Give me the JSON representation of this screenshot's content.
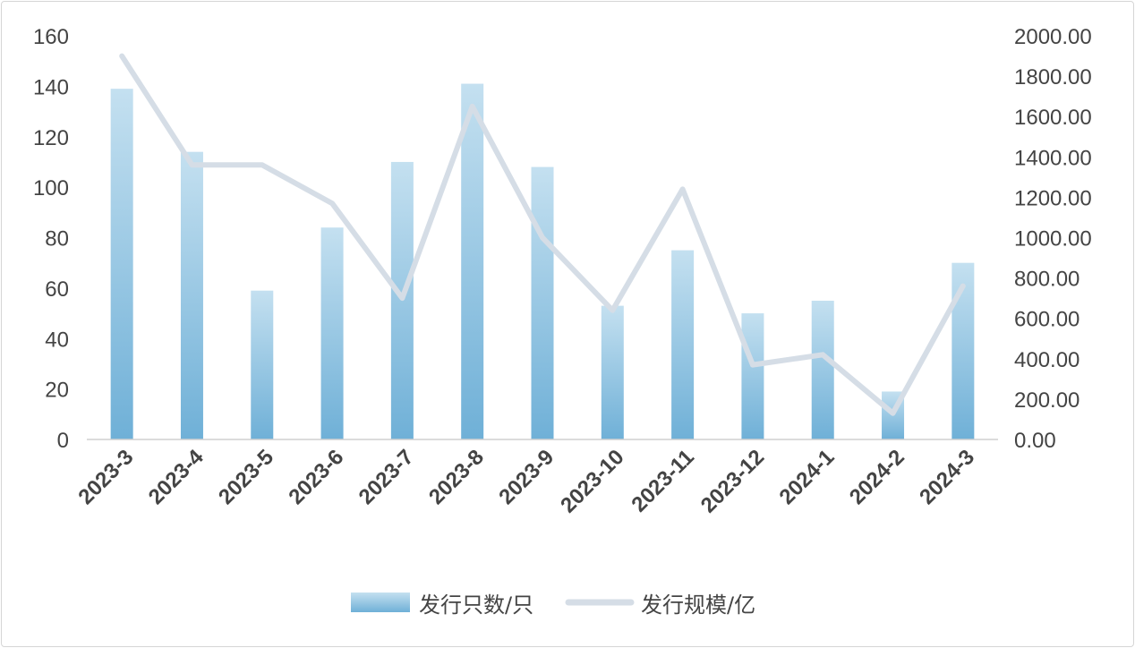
{
  "chart_data": {
    "type": "bar",
    "categories": [
      "2023-3",
      "2023-4",
      "2023-5",
      "2023-6",
      "2023-7",
      "2023-8",
      "2023-9",
      "2023-10",
      "2023-11",
      "2023-12",
      "2024-1",
      "2024-2",
      "2024-3"
    ],
    "series": [
      {
        "name": "发行只数/只",
        "type": "bar",
        "axis": "left",
        "color": "#7ab6da",
        "values": [
          139,
          114,
          59,
          84,
          110,
          141,
          108,
          53,
          75,
          50,
          55,
          19,
          70
        ]
      },
      {
        "name": "发行规模/亿",
        "type": "line",
        "axis": "right",
        "color": "#d5dde6",
        "values": [
          1900,
          1360,
          1360,
          1170,
          700,
          1650,
          1000,
          640,
          1240,
          370,
          420,
          130,
          760
        ]
      }
    ],
    "y_left": {
      "min": 0,
      "max": 160,
      "ticks": [
        "0",
        "20",
        "40",
        "60",
        "80",
        "100",
        "120",
        "140",
        "160"
      ]
    },
    "y_right": {
      "min": 0,
      "max": 2000,
      "ticks": [
        "0.00",
        "200.00",
        "400.00",
        "600.00",
        "800.00",
        "1000.00",
        "1200.00",
        "1400.00",
        "1600.00",
        "1800.00",
        "2000.00"
      ]
    },
    "legend": {
      "position": "bottom",
      "items": [
        "发行只数/只",
        "发行规模/亿"
      ]
    },
    "grid": false
  }
}
